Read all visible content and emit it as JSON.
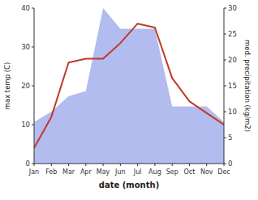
{
  "chart_data": {
    "type": "line",
    "categories": [
      "Jan",
      "Feb",
      "Mar",
      "Apr",
      "May",
      "Jun",
      "Jul",
      "Aug",
      "Sep",
      "Oct",
      "Nov",
      "Dec"
    ],
    "xlabel": "date (month)",
    "ylabel": "max temp (C)",
    "y2label": "med. precipitation (kg/m2)",
    "series": [
      {
        "type": "area",
        "axis": "y2",
        "color": "#b3bcee",
        "values": [
          8,
          10,
          13,
          14,
          30,
          26,
          26,
          26,
          11,
          11,
          11,
          8
        ]
      },
      {
        "type": "line",
        "color": "#c0392b",
        "values": [
          4,
          12,
          26,
          27,
          27,
          31,
          36,
          35,
          22,
          16,
          13,
          10
        ]
      }
    ],
    "ylim": [
      0,
      40
    ],
    "yticks": [
      0,
      10,
      20,
      30,
      40
    ],
    "y2lim": [
      0,
      30
    ],
    "y2ticks": [
      0,
      5,
      10,
      15,
      20,
      25,
      30
    ],
    "grid": false
  }
}
